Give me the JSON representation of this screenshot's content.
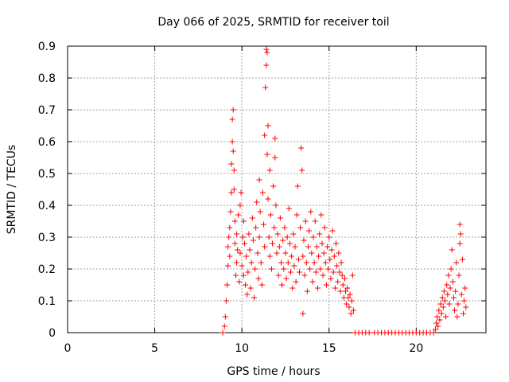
{
  "chart_data": {
    "type": "scatter",
    "title": "Day 066 of 2025, SRMTID for receiver toil",
    "xlabel": "GPS time / hours",
    "ylabel": "SRMTID / TECUs",
    "xlim": [
      0,
      24
    ],
    "ylim": [
      0,
      0.9
    ],
    "x_ticks": [
      0,
      5,
      10,
      15,
      20
    ],
    "x_tick_labels": [
      "0",
      "5",
      "10",
      "15",
      "20"
    ],
    "y_ticks": [
      0,
      0.1,
      0.2,
      0.3,
      0.4,
      0.5,
      0.6,
      0.7,
      0.8,
      0.9
    ],
    "y_tick_labels": [
      "0",
      "0.1",
      "0.2",
      "0.3",
      "0.4",
      "0.5",
      "0.6",
      "0.7",
      "0.8",
      "0.9"
    ],
    "grid": true,
    "marker": "+",
    "color": "#ff0000",
    "series": [
      {
        "name": "SRMTID",
        "points": [
          [
            8.9,
            0.0
          ],
          [
            9.0,
            0.02
          ],
          [
            9.05,
            0.05
          ],
          [
            9.1,
            0.1
          ],
          [
            9.15,
            0.15
          ],
          [
            9.2,
            0.21
          ],
          [
            9.2,
            0.27
          ],
          [
            9.25,
            0.3
          ],
          [
            9.3,
            0.24
          ],
          [
            9.3,
            0.33
          ],
          [
            9.35,
            0.38
          ],
          [
            9.4,
            0.44
          ],
          [
            9.4,
            0.53
          ],
          [
            9.45,
            0.6
          ],
          [
            9.45,
            0.67
          ],
          [
            9.5,
            0.7
          ],
          [
            9.5,
            0.57
          ],
          [
            9.55,
            0.45
          ],
          [
            9.55,
            0.51
          ],
          [
            9.6,
            0.35
          ],
          [
            9.6,
            0.28
          ],
          [
            9.65,
            0.18
          ],
          [
            9.7,
            0.22
          ],
          [
            9.7,
            0.31
          ],
          [
            9.75,
            0.26
          ],
          [
            9.8,
            0.37
          ],
          [
            9.85,
            0.16
          ],
          [
            9.9,
            0.25
          ],
          [
            9.9,
            0.4
          ],
          [
            9.95,
            0.44
          ],
          [
            10.0,
            0.21
          ],
          [
            10.05,
            0.3
          ],
          [
            10.1,
            0.18
          ],
          [
            10.1,
            0.35
          ],
          [
            10.15,
            0.28
          ],
          [
            10.2,
            0.15
          ],
          [
            10.25,
            0.24
          ],
          [
            10.3,
            0.12
          ],
          [
            10.35,
            0.19
          ],
          [
            10.4,
            0.31
          ],
          [
            10.45,
            0.26
          ],
          [
            10.5,
            0.14
          ],
          [
            10.55,
            0.22
          ],
          [
            10.6,
            0.36
          ],
          [
            10.65,
            0.29
          ],
          [
            10.7,
            0.11
          ],
          [
            10.75,
            0.2
          ],
          [
            10.8,
            0.33
          ],
          [
            10.85,
            0.41
          ],
          [
            10.9,
            0.25
          ],
          [
            10.95,
            0.17
          ],
          [
            11.0,
            0.3
          ],
          [
            11.0,
            0.48
          ],
          [
            11.05,
            0.38
          ],
          [
            11.1,
            0.22
          ],
          [
            11.15,
            0.15
          ],
          [
            11.2,
            0.44
          ],
          [
            11.25,
            0.34
          ],
          [
            11.3,
            0.27
          ],
          [
            11.3,
            0.62
          ],
          [
            11.35,
            0.77
          ],
          [
            11.4,
            0.84
          ],
          [
            11.4,
            0.89
          ],
          [
            11.45,
            0.88
          ],
          [
            11.45,
            0.56
          ],
          [
            11.5,
            0.65
          ],
          [
            11.5,
            0.42
          ],
          [
            11.55,
            0.3
          ],
          [
            11.6,
            0.24
          ],
          [
            11.6,
            0.51
          ],
          [
            11.65,
            0.37
          ],
          [
            11.7,
            0.2
          ],
          [
            11.75,
            0.28
          ],
          [
            11.8,
            0.46
          ],
          [
            11.85,
            0.33
          ],
          [
            11.9,
            0.61
          ],
          [
            11.9,
            0.55
          ],
          [
            11.95,
            0.4
          ],
          [
            12.0,
            0.25
          ],
          [
            12.05,
            0.31
          ],
          [
            12.1,
            0.18
          ],
          [
            12.15,
            0.27
          ],
          [
            12.2,
            0.36
          ],
          [
            12.25,
            0.22
          ],
          [
            12.3,
            0.15
          ],
          [
            12.35,
            0.29
          ],
          [
            12.4,
            0.2
          ],
          [
            12.45,
            0.33
          ],
          [
            12.5,
            0.25
          ],
          [
            12.55,
            0.17
          ],
          [
            12.6,
            0.3
          ],
          [
            12.65,
            0.22
          ],
          [
            12.7,
            0.39
          ],
          [
            12.75,
            0.28
          ],
          [
            12.8,
            0.19
          ],
          [
            12.85,
            0.24
          ],
          [
            12.9,
            0.14
          ],
          [
            12.95,
            0.31
          ],
          [
            13.0,
            0.21
          ],
          [
            13.05,
            0.27
          ],
          [
            13.1,
            0.16
          ],
          [
            13.15,
            0.37
          ],
          [
            13.2,
            0.46
          ],
          [
            13.25,
            0.23
          ],
          [
            13.3,
            0.19
          ],
          [
            13.35,
            0.33
          ],
          [
            13.4,
            0.58
          ],
          [
            13.45,
            0.51
          ],
          [
            13.5,
            0.24
          ],
          [
            13.5,
            0.06
          ],
          [
            13.55,
            0.29
          ],
          [
            13.6,
            0.18
          ],
          [
            13.65,
            0.35
          ],
          [
            13.7,
            0.22
          ],
          [
            13.75,
            0.13
          ],
          [
            13.8,
            0.27
          ],
          [
            13.85,
            0.32
          ],
          [
            13.9,
            0.2
          ],
          [
            13.95,
            0.38
          ],
          [
            14.0,
            0.25
          ],
          [
            14.05,
            0.16
          ],
          [
            14.1,
            0.3
          ],
          [
            14.15,
            0.22
          ],
          [
            14.2,
            0.35
          ],
          [
            14.25,
            0.19
          ],
          [
            14.3,
            0.27
          ],
          [
            14.35,
            0.14
          ],
          [
            14.4,
            0.24
          ],
          [
            14.45,
            0.31
          ],
          [
            14.5,
            0.2
          ],
          [
            14.55,
            0.37
          ],
          [
            14.6,
            0.28
          ],
          [
            14.65,
            0.18
          ],
          [
            14.7,
            0.25
          ],
          [
            14.75,
            0.33
          ],
          [
            14.8,
            0.22
          ],
          [
            14.85,
            0.15
          ],
          [
            14.9,
            0.27
          ],
          [
            14.95,
            0.2
          ],
          [
            15.0,
            0.3
          ],
          [
            15.05,
            0.23
          ],
          [
            15.1,
            0.17
          ],
          [
            15.15,
            0.26
          ],
          [
            15.2,
            0.32
          ],
          [
            15.25,
            0.19
          ],
          [
            15.3,
            0.24
          ],
          [
            15.35,
            0.14
          ],
          [
            15.4,
            0.28
          ],
          [
            15.45,
            0.21
          ],
          [
            15.5,
            0.16
          ],
          [
            15.55,
            0.25
          ],
          [
            15.6,
            0.19
          ],
          [
            15.65,
            0.13
          ],
          [
            15.7,
            0.22
          ],
          [
            15.75,
            0.18
          ],
          [
            15.8,
            0.15
          ],
          [
            15.85,
            0.11
          ],
          [
            15.9,
            0.17
          ],
          [
            15.95,
            0.13
          ],
          [
            16.0,
            0.09
          ],
          [
            16.05,
            0.14
          ],
          [
            16.1,
            0.11
          ],
          [
            16.15,
            0.08
          ],
          [
            16.2,
            0.12
          ],
          [
            16.25,
            0.06
          ],
          [
            16.3,
            0.1
          ],
          [
            16.35,
            0.18
          ],
          [
            16.4,
            0.07
          ],
          [
            16.5,
            0.0
          ],
          [
            16.7,
            0.0
          ],
          [
            16.9,
            0.0
          ],
          [
            17.1,
            0.0
          ],
          [
            17.3,
            0.0
          ],
          [
            17.6,
            0.0
          ],
          [
            17.8,
            0.0
          ],
          [
            18.0,
            0.0
          ],
          [
            18.2,
            0.0
          ],
          [
            18.4,
            0.0
          ],
          [
            18.6,
            0.0
          ],
          [
            18.8,
            0.0
          ],
          [
            19.0,
            0.0
          ],
          [
            19.2,
            0.0
          ],
          [
            19.4,
            0.0
          ],
          [
            19.6,
            0.0
          ],
          [
            19.8,
            0.0
          ],
          [
            20.0,
            0.0
          ],
          [
            20.2,
            0.0
          ],
          [
            20.4,
            0.0
          ],
          [
            20.6,
            0.0
          ],
          [
            20.8,
            0.0
          ],
          [
            21.0,
            0.0
          ],
          [
            21.1,
            0.01
          ],
          [
            21.15,
            0.03
          ],
          [
            21.2,
            0.05
          ],
          [
            21.25,
            0.02
          ],
          [
            21.3,
            0.07
          ],
          [
            21.35,
            0.04
          ],
          [
            21.4,
            0.09
          ],
          [
            21.45,
            0.06
          ],
          [
            21.5,
            0.11
          ],
          [
            21.55,
            0.08
          ],
          [
            21.6,
            0.13
          ],
          [
            21.65,
            0.1
          ],
          [
            21.7,
            0.05
          ],
          [
            21.75,
            0.15
          ],
          [
            21.8,
            0.12
          ],
          [
            21.85,
            0.18
          ],
          [
            21.9,
            0.09
          ],
          [
            21.95,
            0.14
          ],
          [
            22.0,
            0.2
          ],
          [
            22.05,
            0.26
          ],
          [
            22.1,
            0.16
          ],
          [
            22.15,
            0.11
          ],
          [
            22.2,
            0.07
          ],
          [
            22.25,
            0.13
          ],
          [
            22.3,
            0.22
          ],
          [
            22.35,
            0.05
          ],
          [
            22.4,
            0.09
          ],
          [
            22.45,
            0.18
          ],
          [
            22.5,
            0.28
          ],
          [
            22.5,
            0.34
          ],
          [
            22.55,
            0.31
          ],
          [
            22.6,
            0.12
          ],
          [
            22.65,
            0.23
          ],
          [
            22.7,
            0.06
          ],
          [
            22.75,
            0.1
          ],
          [
            22.8,
            0.14
          ],
          [
            22.85,
            0.08
          ]
        ]
      }
    ]
  }
}
